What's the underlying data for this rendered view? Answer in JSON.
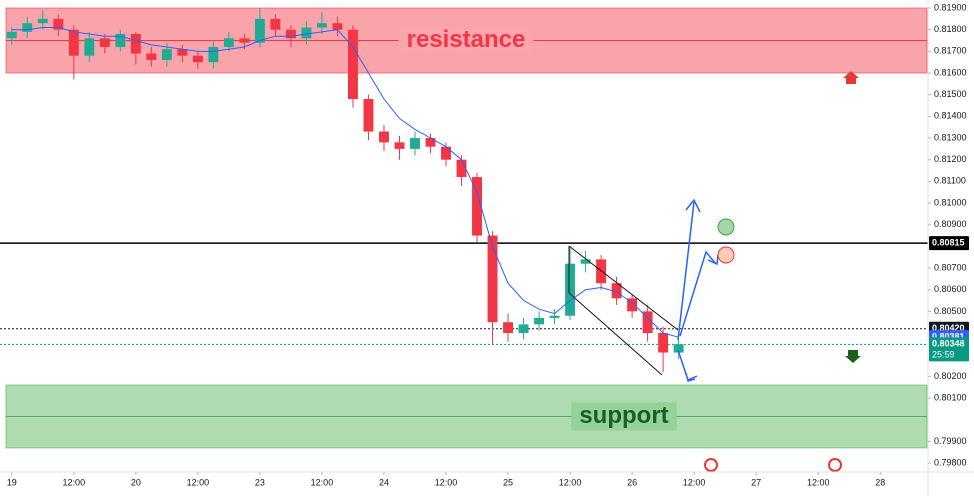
{
  "chart_data": {
    "type": "candlestick",
    "x": [
      0,
      0.25,
      0.5,
      0.75,
      1,
      1.25,
      1.5,
      1.75,
      2,
      2.25,
      2.5,
      2.75,
      3,
      3.25,
      3.5,
      3.75,
      4,
      4.25,
      4.5,
      4.75,
      5,
      5.25,
      5.5,
      5.75,
      6,
      6.25,
      6.5,
      6.75,
      7,
      7.25,
      7.5,
      7.75,
      8,
      8.25,
      8.5,
      8.75,
      9,
      9.25,
      9.5,
      9.75,
      10,
      10.25,
      10.5,
      10.75
    ],
    "open": [
      0.8176,
      0.8179,
      0.8183,
      0.8185,
      0.818,
      0.8168,
      0.8176,
      0.8172,
      0.8178,
      0.8169,
      0.8166,
      0.8171,
      0.8168,
      0.8165,
      0.8172,
      0.8176,
      0.8174,
      0.8185,
      0.818,
      0.8176,
      0.8181,
      0.8183,
      0.818,
      0.8148,
      0.8133,
      0.8128,
      0.8125,
      0.813,
      0.8126,
      0.812,
      0.8112,
      0.8085,
      0.8045,
      0.804,
      0.8044,
      0.8047,
      0.8048,
      0.8072,
      0.8074,
      0.8063,
      0.8056,
      0.805,
      0.804,
      0.8031
    ],
    "high": [
      0.8181,
      0.8186,
      0.8189,
      0.8187,
      0.8182,
      0.8179,
      0.8178,
      0.818,
      0.8179,
      0.8172,
      0.8174,
      0.8173,
      0.817,
      0.8175,
      0.8179,
      0.8178,
      0.819,
      0.8187,
      0.8182,
      0.8184,
      0.8188,
      0.8186,
      0.8182,
      0.815,
      0.8136,
      0.8131,
      0.8133,
      0.8132,
      0.8128,
      0.8122,
      0.8114,
      0.8087,
      0.8049,
      0.8047,
      0.805,
      0.8051,
      0.808,
      0.8078,
      0.8076,
      0.8066,
      0.8058,
      0.8053,
      0.8043,
      0.8037
    ],
    "low": [
      0.8173,
      0.8176,
      0.818,
      0.8177,
      0.8157,
      0.8165,
      0.8169,
      0.817,
      0.8164,
      0.8163,
      0.8163,
      0.8165,
      0.8162,
      0.8162,
      0.817,
      0.8171,
      0.8172,
      0.8177,
      0.8172,
      0.8173,
      0.8178,
      0.8177,
      0.8144,
      0.8129,
      0.8124,
      0.812,
      0.8122,
      0.8123,
      0.8117,
      0.8108,
      0.8082,
      0.8035,
      0.8036,
      0.8037,
      0.8041,
      0.8044,
      0.8046,
      0.8068,
      0.806,
      0.8053,
      0.8047,
      0.8036,
      0.8022,
      0.8028
    ],
    "close": [
      0.8179,
      0.8183,
      0.8185,
      0.818,
      0.8168,
      0.8176,
      0.8172,
      0.8178,
      0.8169,
      0.8166,
      0.8171,
      0.8168,
      0.8165,
      0.8172,
      0.8176,
      0.8174,
      0.8185,
      0.818,
      0.8176,
      0.8181,
      0.8183,
      0.818,
      0.8148,
      0.8133,
      0.8128,
      0.8125,
      0.813,
      0.8126,
      0.812,
      0.8112,
      0.8085,
      0.8045,
      0.804,
      0.8044,
      0.8047,
      0.8048,
      0.8072,
      0.8074,
      0.8063,
      0.8056,
      0.805,
      0.804,
      0.8031,
      0.80348
    ],
    "up_color": "#22ab94",
    "down_color": "#f23645",
    "ma": {
      "color": "#2962ff",
      "values": [
        0.818,
        0.818,
        0.8181,
        0.8181,
        0.8179,
        0.8178,
        0.8177,
        0.8177,
        0.8175,
        0.8173,
        0.8172,
        0.8171,
        0.817,
        0.817,
        0.8171,
        0.8172,
        0.8175,
        0.8177,
        0.8177,
        0.8178,
        0.8179,
        0.818,
        0.8172,
        0.816,
        0.8148,
        0.8139,
        0.8134,
        0.813,
        0.8126,
        0.812,
        0.8105,
        0.808,
        0.8063,
        0.8055,
        0.8051,
        0.8049,
        0.8055,
        0.806,
        0.8061,
        0.8059,
        0.8054,
        0.8047,
        0.804,
        0.80381
      ]
    },
    "zones": [
      {
        "name": "resistance",
        "low": 0.816,
        "high": 0.819,
        "color": "#f23645"
      },
      {
        "name": "support",
        "low": 0.7987,
        "high": 0.8016,
        "color": "#4caf50"
      }
    ],
    "price_lines": [
      {
        "value": 0.80815,
        "label": "0.80815",
        "color": "#000000",
        "style": "solid"
      },
      {
        "value": 0.8042,
        "label": "0.80420",
        "color": "#131722",
        "style": "dotted"
      },
      {
        "value": 0.80381,
        "label": "0.80381",
        "color": "#2962ff",
        "style": "none"
      },
      {
        "value": 0.80348,
        "label": "0.80348",
        "color": "#089981",
        "style": "dotted"
      }
    ],
    "countdown": "25:59",
    "xlim": [
      -0.19,
      14.77
    ],
    "ylim": [
      0.79768,
      0.81937
    ],
    "xticks": [
      {
        "value": 0,
        "label": "19"
      },
      {
        "value": 1,
        "label": "12:00"
      },
      {
        "value": 2,
        "label": "20"
      },
      {
        "value": 3,
        "label": "12:00"
      },
      {
        "value": 4,
        "label": "23"
      },
      {
        "value": 5,
        "label": "12:00"
      },
      {
        "value": 6,
        "label": "24"
      },
      {
        "value": 7,
        "label": "12:00"
      },
      {
        "value": 8,
        "label": "25"
      },
      {
        "value": 9,
        "label": "12:00"
      },
      {
        "value": 10,
        "label": "26"
      },
      {
        "value": 11,
        "label": "12:00"
      },
      {
        "value": 12,
        "label": "27"
      },
      {
        "value": 13,
        "label": "12:00"
      },
      {
        "value": 14,
        "label": "28"
      }
    ],
    "yticks": [
      {
        "value": 0.819,
        "label": "0.81900"
      },
      {
        "value": 0.818,
        "label": "0.81800"
      },
      {
        "value": 0.817,
        "label": "0.81700"
      },
      {
        "value": 0.816,
        "label": "0.81600"
      },
      {
        "value": 0.815,
        "label": "0.81500"
      },
      {
        "value": 0.814,
        "label": "0.81400"
      },
      {
        "value": 0.813,
        "label": "0.81300"
      },
      {
        "value": 0.812,
        "label": "0.81200"
      },
      {
        "value": 0.811,
        "label": "0.81100"
      },
      {
        "value": 0.81,
        "label": "0.81000"
      },
      {
        "value": 0.809,
        "label": "0.80900"
      },
      {
        "value": 0.807,
        "label": "0.80700"
      },
      {
        "value": 0.806,
        "label": "0.80600"
      },
      {
        "value": 0.805,
        "label": "0.80500"
      },
      {
        "value": 0.802,
        "label": "0.80200"
      },
      {
        "value": 0.801,
        "label": "0.80100"
      },
      {
        "value": 0.799,
        "label": "0.79900"
      },
      {
        "value": 0.798,
        "label": "0.79800"
      }
    ]
  }
}
